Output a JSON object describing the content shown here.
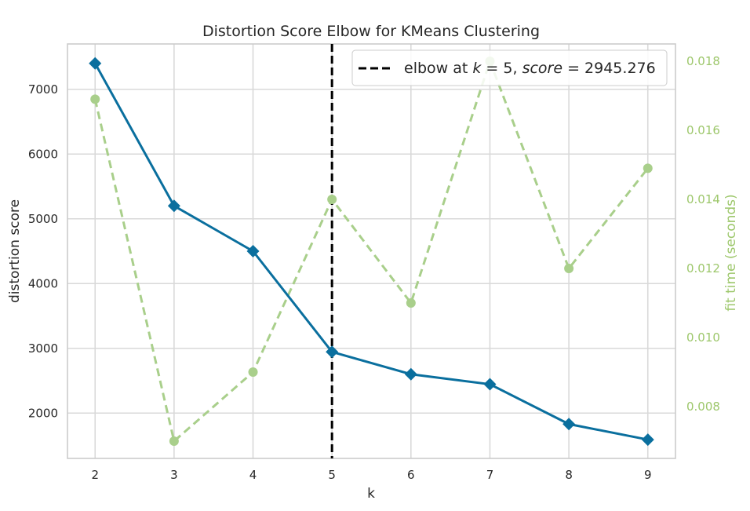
{
  "chart_data": {
    "type": "line",
    "title": "Distortion Score Elbow for KMeans Clustering",
    "xlabel": "k",
    "ylabel": "distortion score",
    "ylabel_right": "fit time (seconds)",
    "x": [
      2,
      3,
      4,
      5,
      6,
      7,
      8,
      9
    ],
    "xlim": [
      1.65,
      9.35
    ],
    "ylim": [
      1300,
      7700
    ],
    "ylim_right": [
      0.0065,
      0.0185
    ],
    "yticks": [
      2000,
      3000,
      4000,
      5000,
      6000,
      7000
    ],
    "yticks_right": [
      0.008,
      0.01,
      0.012,
      0.014,
      0.016,
      0.018
    ],
    "ytick_labels_right": [
      "0.008",
      "0.010",
      "0.012",
      "0.014",
      "0.016",
      "0.018"
    ],
    "grid": true,
    "series": [
      {
        "values": [
          7400,
          5200,
          4500,
          2945,
          2600,
          2445,
          1830,
          1590
        ],
        "color": "#0a6f9e",
        "marker": "diamond",
        "axis": "left"
      },
      {
        "values": [
          0.0169,
          0.007,
          0.009,
          0.014,
          0.011,
          0.018,
          0.012,
          0.0149
        ],
        "color": "#a9cf8b",
        "marker": "circle",
        "dashed": true,
        "axis": "right"
      }
    ],
    "elbow": {
      "k": 5,
      "legend_prefix": "elbow at ",
      "legend_k": "k",
      "legend_k_value": " = 5, ",
      "legend_score": "score",
      "legend_score_value": " = 2945.276"
    },
    "legend_position": "top-right"
  }
}
